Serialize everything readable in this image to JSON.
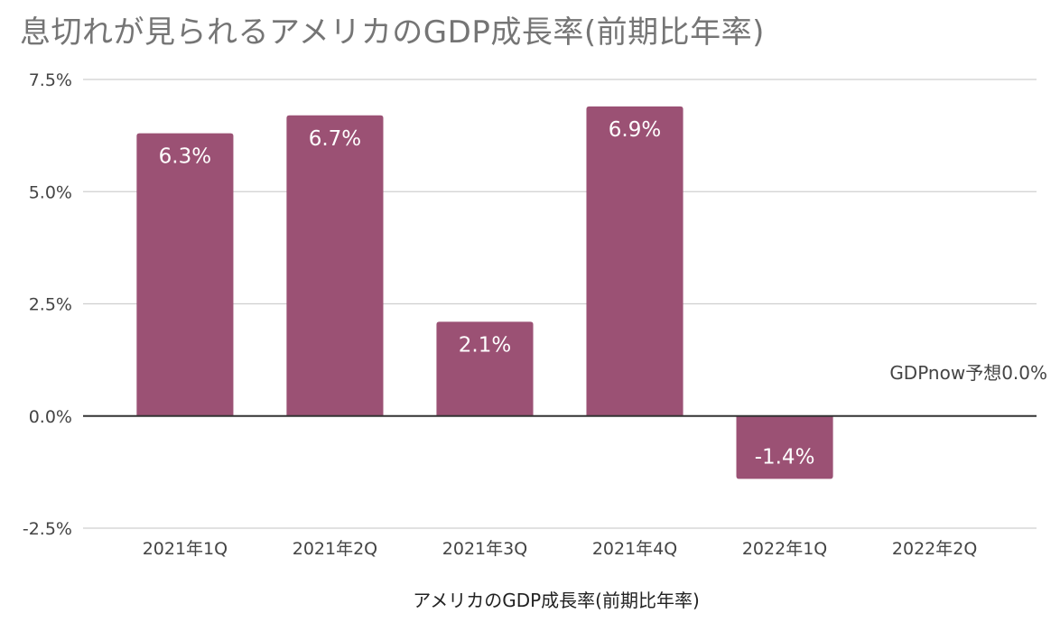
{
  "chart_data": {
    "type": "bar",
    "title": "息切れが見られるアメリカのGDP成長率(前期比年率)",
    "xlabel": "アメリカのGDP成長率(前期比年率)",
    "ylabel": "",
    "categories": [
      "2021年1Q",
      "2021年2Q",
      "2021年3Q",
      "2021年4Q",
      "2022年1Q",
      "2022年2Q"
    ],
    "values": [
      6.3,
      6.7,
      2.1,
      6.9,
      -1.4,
      null
    ],
    "data_labels": [
      "6.3%",
      "6.7%",
      "2.1%",
      "6.9%",
      "-1.4%",
      ""
    ],
    "ylim": [
      -2.5,
      7.5
    ],
    "yticks": [
      7.5,
      5.0,
      2.5,
      0.0,
      -2.5
    ],
    "ytick_labels": [
      "7.5%",
      "5.0%",
      "2.5%",
      "0.0%",
      "-2.5%"
    ],
    "annotation": "GDPnow予想0.0%",
    "bar_color": "#9b5174",
    "grid": true,
    "legend": "none"
  }
}
